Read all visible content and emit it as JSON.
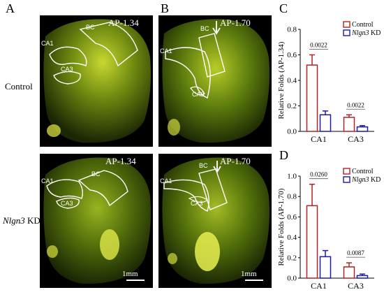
{
  "panels": {
    "A": "A",
    "B": "B",
    "C": "C",
    "D": "D"
  },
  "rows": {
    "control": "Control",
    "kd_gene": "Nlgn3",
    "kd_suffix": " KD"
  },
  "images": [
    {
      "id": "A_top",
      "ap": "AP-1.34",
      "labels": {
        "bc": "BC",
        "ca1": "CA1",
        "ca3": "CA3"
      }
    },
    {
      "id": "B_top",
      "ap": "AP-1.70",
      "labels": {
        "bc": "BC",
        "ca1": "CA1",
        "ca3": "CA3"
      }
    },
    {
      "id": "A_bot",
      "ap": "AP-1.34",
      "labels": {
        "bc": "BC",
        "ca1": "CA1",
        "ca3": "CA3"
      },
      "scale": "1mm"
    },
    {
      "id": "B_bot",
      "ap": "AP-1.70",
      "labels": {
        "bc": "BC",
        "ca1": "CA1",
        "ca3": "CA3"
      },
      "scale": "1mm"
    }
  ],
  "colors": {
    "control": "#b22222",
    "kd": "#1a1aa8"
  },
  "chart_data": [
    {
      "type": "bar",
      "panel": "C",
      "ylabel": "Relative Folds (AP-1.34)",
      "categories": [
        "CA1",
        "CA3"
      ],
      "ylim": [
        0,
        0.8
      ],
      "yticks": [
        "0.0",
        "0.2",
        "0.4",
        "0.6",
        "0.8"
      ],
      "series": [
        {
          "name_gene": "Control",
          "values": [
            0.52,
            0.11
          ],
          "errors": [
            0.08,
            0.02
          ]
        },
        {
          "name_gene": "Nlgn3",
          "name_suffix": " KD",
          "values": [
            0.13,
            0.035
          ],
          "errors": [
            0.03,
            0.01
          ]
        }
      ],
      "pvalues": [
        "0.0022",
        "0.0022"
      ]
    },
    {
      "type": "bar",
      "panel": "D",
      "ylabel": "Relative Folds (AP-1.70)",
      "categories": [
        "CA1",
        "CA3"
      ],
      "ylim": [
        0,
        1.0
      ],
      "yticks": [
        "0.0",
        "0.2",
        "0.4",
        "0.6",
        "0.8",
        "1.0"
      ],
      "series": [
        {
          "name_gene": "Control",
          "values": [
            0.71,
            0.11
          ],
          "errors": [
            0.21,
            0.04
          ]
        },
        {
          "name_gene": "Nlgn3",
          "name_suffix": " KD",
          "values": [
            0.21,
            0.025
          ],
          "errors": [
            0.06,
            0.015
          ]
        }
      ],
      "pvalues": [
        "0.0260",
        "0.0087"
      ]
    }
  ]
}
